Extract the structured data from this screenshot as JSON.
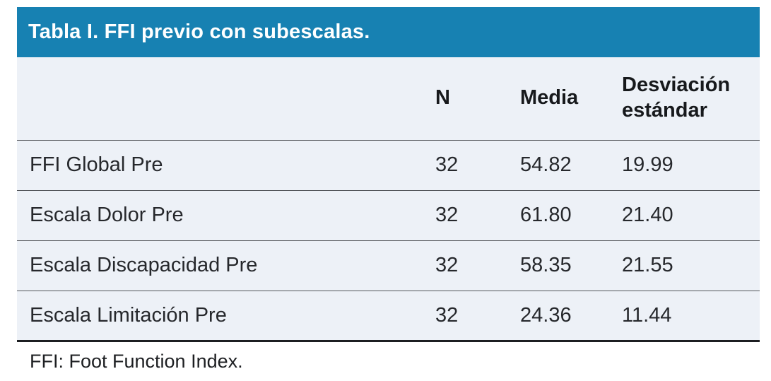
{
  "table": {
    "title": "Tabla I. FFI previo con subescalas.",
    "columns": {
      "label": "",
      "n": "N",
      "media": "Media",
      "sd": "Desviación estándar"
    },
    "rows": [
      {
        "label": "FFI Global Pre",
        "n": "32",
        "media": "54.82",
        "sd": "19.99"
      },
      {
        "label": "Escala Dolor Pre",
        "n": "32",
        "media": "61.80",
        "sd": "21.40"
      },
      {
        "label": "Escala Discapacidad Pre",
        "n": "32",
        "media": "58.35",
        "sd": "21.55"
      },
      {
        "label": "Escala Limitación Pre",
        "n": "32",
        "media": "24.36",
        "sd": "11.44"
      }
    ],
    "footnote": "FFI: Foot Function Index."
  },
  "colors": {
    "title_bar_bg": "#1781b2",
    "title_text": "#ffffff",
    "table_bg": "#edf1f7",
    "separator": "#54575c",
    "bottom_border": "#1c1e21",
    "body_text": "#26282c"
  }
}
